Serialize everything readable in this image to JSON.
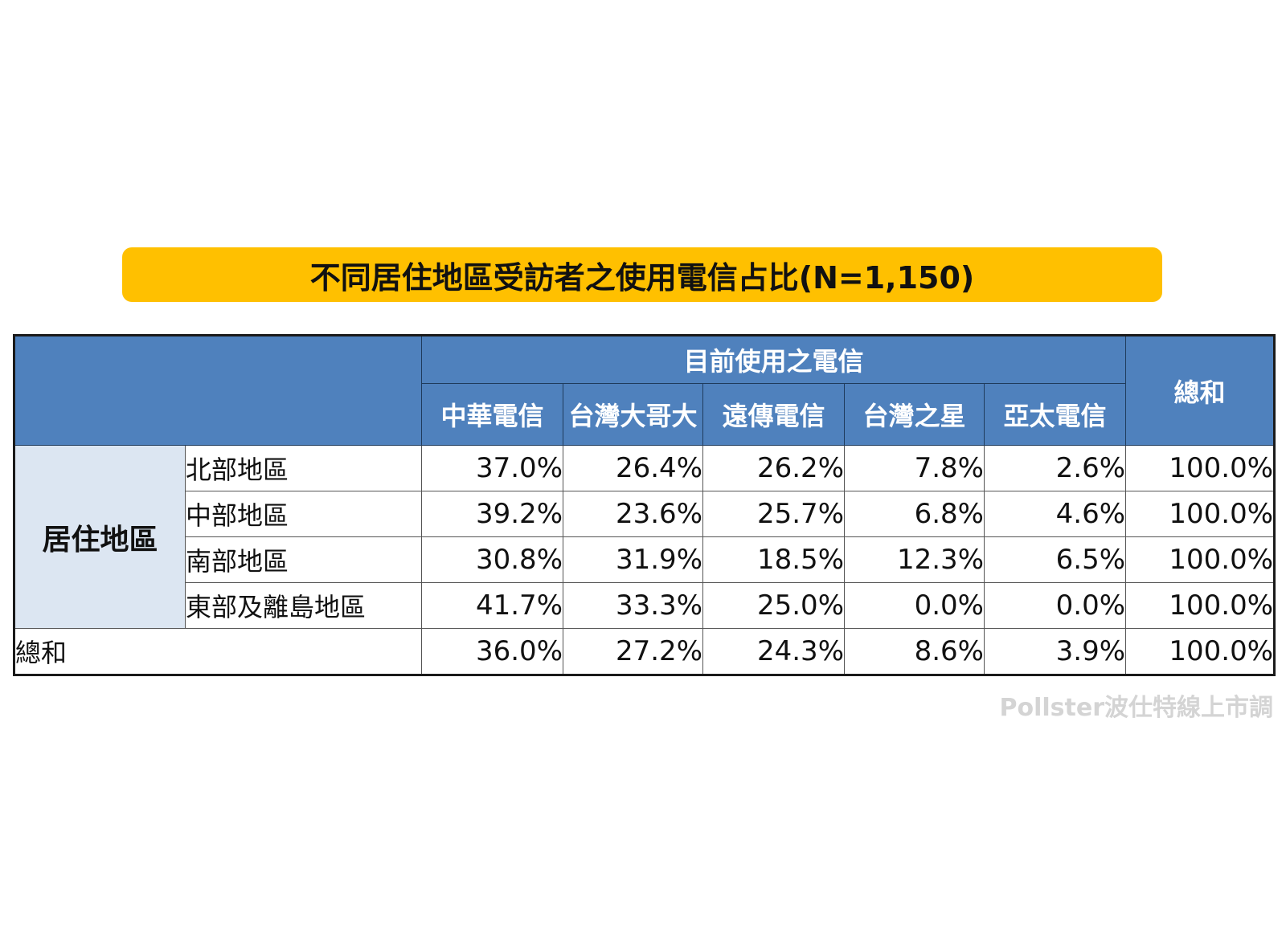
{
  "title": "不同居住地區受訪者之使用電信占比(N=1,150)",
  "watermark": "Pollster波仕特線上市調",
  "chart_data": {
    "type": "table",
    "group_header": "目前使用之電信",
    "total_column_header": "總和",
    "columns": [
      "中華電信",
      "台灣大哥大",
      "遠傳電信",
      "台灣之星",
      "亞太電信"
    ],
    "row_group_label": "居住地區",
    "rows": [
      {
        "label": "北部地區",
        "values": [
          "37.0%",
          "26.4%",
          "26.2%",
          "7.8%",
          "2.6%"
        ],
        "total": "100.0%"
      },
      {
        "label": "中部地區",
        "values": [
          "39.2%",
          "23.6%",
          "25.7%",
          "6.8%",
          "4.6%"
        ],
        "total": "100.0%"
      },
      {
        "label": "南部地區",
        "values": [
          "30.8%",
          "31.9%",
          "18.5%",
          "12.3%",
          "6.5%"
        ],
        "total": "100.0%"
      },
      {
        "label": "東部及離島地區",
        "values": [
          "41.7%",
          "33.3%",
          "25.0%",
          "0.0%",
          "0.0%"
        ],
        "total": "100.0%"
      }
    ],
    "total_row": {
      "label": "總和",
      "values": [
        "36.0%",
        "27.2%",
        "24.3%",
        "8.6%",
        "3.9%"
      ],
      "total": "100.0%"
    }
  }
}
